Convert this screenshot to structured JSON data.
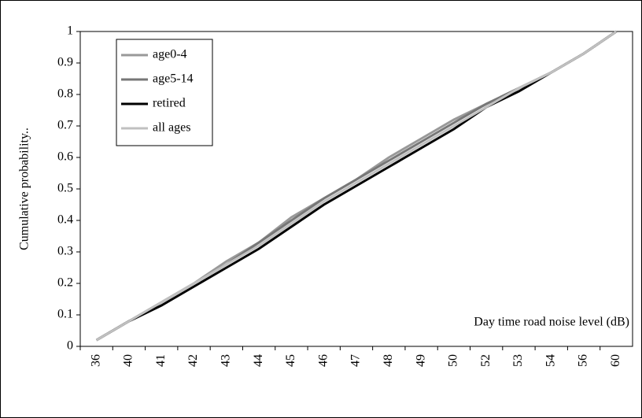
{
  "chart_data": {
    "type": "line",
    "x_label": "Day time road noise level (dB)",
    "y_label": "Cumulative probability..",
    "categories": [
      "36",
      "40",
      "41",
      "42",
      "43",
      "44",
      "45",
      "46",
      "47",
      "48",
      "49",
      "50",
      "52",
      "53",
      "54",
      "56",
      "60"
    ],
    "series": [
      {
        "name": "age0-4",
        "color": "#999999",
        "values": [
          0.02,
          0.08,
          0.14,
          0.2,
          0.27,
          0.33,
          0.41,
          0.47,
          0.53,
          0.6,
          0.66,
          0.72,
          0.77,
          0.82,
          0.87,
          0.93,
          1.0
        ]
      },
      {
        "name": "age5-14",
        "color": "#777777",
        "values": [
          0.02,
          0.08,
          0.14,
          0.2,
          0.26,
          0.33,
          0.4,
          0.47,
          0.53,
          0.59,
          0.65,
          0.71,
          0.77,
          0.82,
          0.87,
          0.93,
          1.0
        ]
      },
      {
        "name": "retired",
        "color": "#000000",
        "values": [
          0.02,
          0.08,
          0.13,
          0.19,
          0.25,
          0.31,
          0.38,
          0.45,
          0.51,
          0.57,
          0.63,
          0.69,
          0.76,
          0.81,
          0.87,
          0.93,
          1.0
        ]
      },
      {
        "name": "all ages",
        "color": "#c0c0c0",
        "values": [
          0.02,
          0.08,
          0.14,
          0.2,
          0.26,
          0.32,
          0.39,
          0.46,
          0.52,
          0.58,
          0.64,
          0.7,
          0.76,
          0.82,
          0.87,
          0.93,
          1.0
        ]
      }
    ],
    "ylim": [
      0,
      1
    ],
    "yticks": [
      0,
      0.1,
      0.2,
      0.3,
      0.4,
      0.5,
      0.6,
      0.7,
      0.8,
      0.9,
      1
    ],
    "grid": false,
    "legend": "top-left"
  }
}
